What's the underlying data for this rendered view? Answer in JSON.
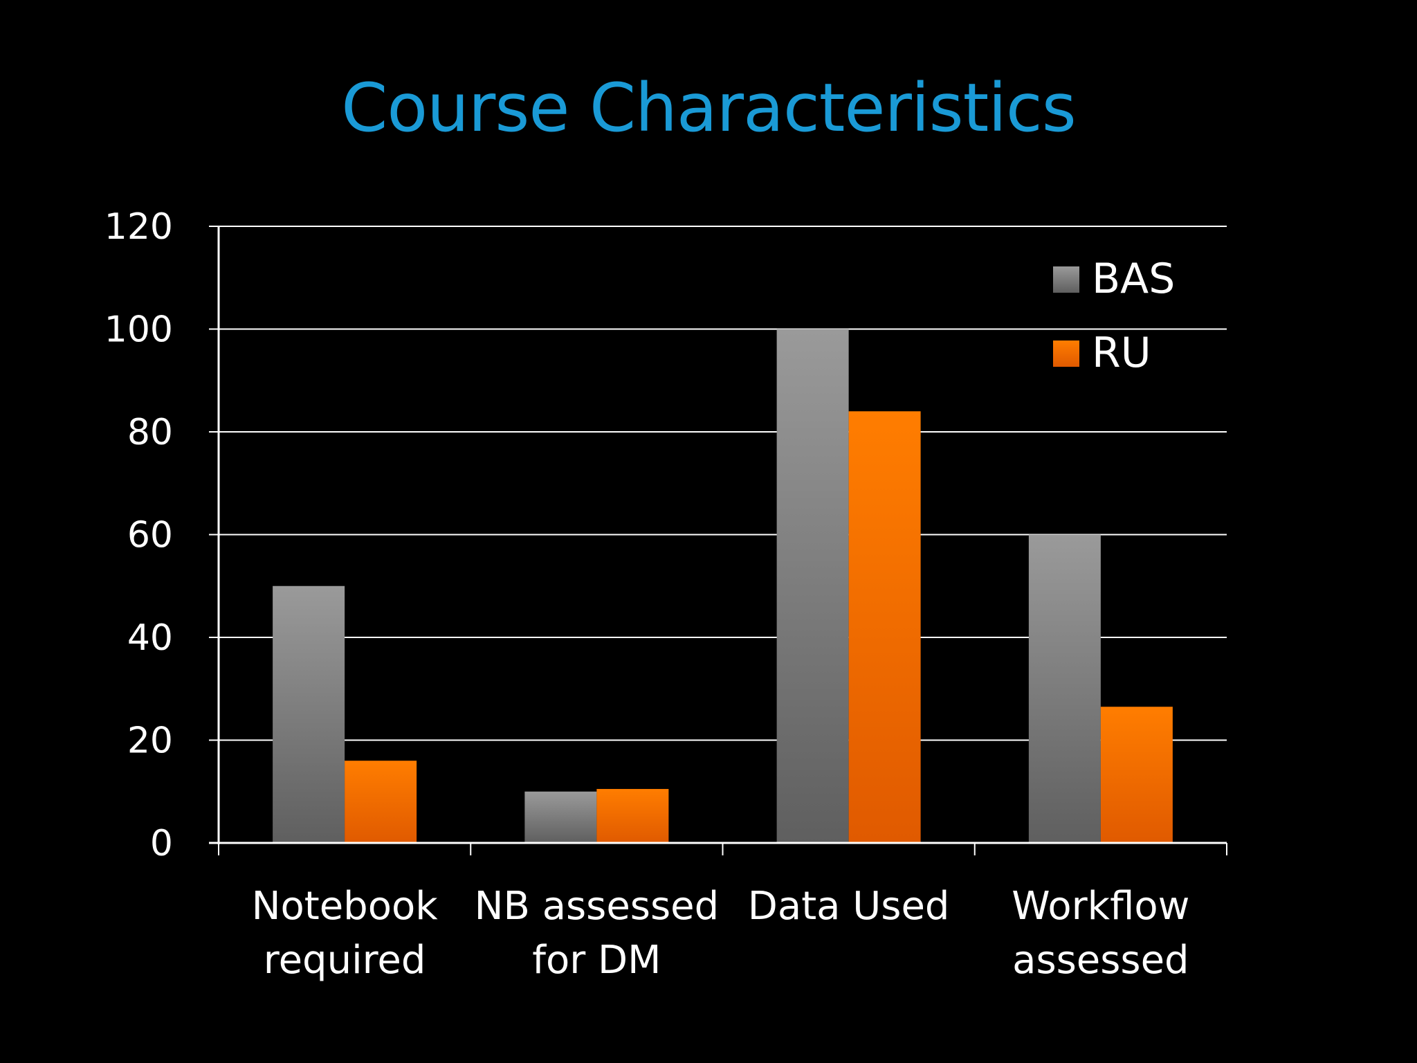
{
  "slide": {
    "title": "Course Characteristics"
  },
  "colors": {
    "background": "#000000",
    "title": "#1a9ad6",
    "axis": "#ffffff",
    "BAS": "#8c8c8c",
    "RU": "#ff7a00"
  },
  "chart_data": {
    "type": "bar",
    "title": "Course Characteristics",
    "categories": [
      [
        "Notebook",
        "required"
      ],
      [
        "NB assessed",
        "for DM"
      ],
      [
        "Data Used"
      ],
      [
        "Workflow",
        "assessed"
      ]
    ],
    "series": [
      {
        "name": "BAS",
        "values": [
          50,
          10,
          100,
          60
        ]
      },
      {
        "name": "RU",
        "values": [
          16,
          10.5,
          84,
          26.5
        ]
      }
    ],
    "ylim": [
      0,
      120
    ],
    "yticks": [
      0,
      20,
      40,
      60,
      80,
      100,
      120
    ],
    "grid": true,
    "legend": "top-right"
  }
}
